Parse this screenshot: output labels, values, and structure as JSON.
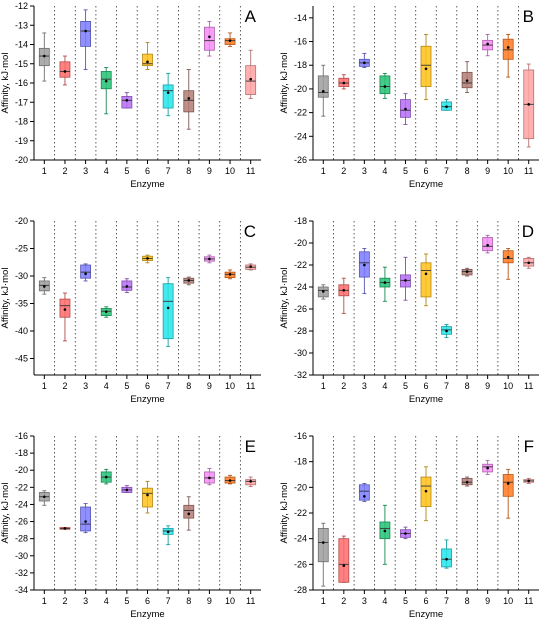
{
  "chart_data": [
    {
      "type": "box",
      "panel_label": "A",
      "xlabel": "Enzyme",
      "ylabel": "Affinity, kJ·mol",
      "categories": [
        "1",
        "2",
        "3",
        "4",
        "5",
        "6",
        "7",
        "8",
        "9",
        "10",
        "11"
      ],
      "ylim": [
        -20,
        -12
      ],
      "yticks": [
        -20,
        -19,
        -18,
        -17,
        -16,
        -15,
        -14,
        -13,
        -12
      ],
      "boxes": [
        {
          "min": -15.9,
          "q1": -15.1,
          "median": -14.6,
          "q3": -14.2,
          "max": -13.4,
          "mean": -14.6,
          "color": "#9e9e9e"
        },
        {
          "min": -16.1,
          "q1": -15.7,
          "median": -15.4,
          "q3": -14.9,
          "max": -14.6,
          "mean": -15.4,
          "color": "#ff6b6b"
        },
        {
          "min": -15.3,
          "q1": -14.1,
          "median": -13.3,
          "q3": -12.8,
          "max": -12.2,
          "mean": -13.3,
          "color": "#7b7bff"
        },
        {
          "min": -17.6,
          "q1": -16.3,
          "median": -15.8,
          "q3": -15.4,
          "max": -15.2,
          "mean": -15.9,
          "color": "#23c275"
        },
        {
          "min": -17.3,
          "q1": -17.3,
          "median": -16.9,
          "q3": -16.7,
          "max": -16.5,
          "mean": -16.9,
          "color": "#b56cf5"
        },
        {
          "min": -15.3,
          "q1": -15.1,
          "median": -15.0,
          "q3": -14.5,
          "max": -13.9,
          "mean": -14.9,
          "color": "#ffc21a"
        },
        {
          "min": -17.7,
          "q1": -17.3,
          "median": -16.4,
          "q3": -16.1,
          "max": -15.5,
          "mean": -16.5,
          "color": "#24e5ea"
        },
        {
          "min": -18.4,
          "q1": -17.5,
          "median": -16.9,
          "q3": -16.4,
          "max": -15.3,
          "mean": -16.8,
          "color": "#b47b74"
        },
        {
          "min": -14.6,
          "q1": -14.3,
          "median": -13.8,
          "q3": -13.1,
          "max": -12.8,
          "mean": -13.6,
          "color": "#f58cf5"
        },
        {
          "min": -14.1,
          "q1": -14.0,
          "median": -13.8,
          "q3": -13.7,
          "max": -13.4,
          "mean": -13.8,
          "color": "#ff7a21"
        },
        {
          "min": -16.8,
          "q1": -16.6,
          "median": -15.9,
          "q3": -15.1,
          "max": -14.3,
          "mean": -15.8,
          "color": "#ffa3a3"
        }
      ]
    },
    {
      "type": "box",
      "panel_label": "B",
      "xlabel": "Enzyme",
      "ylabel": "Affinity, kJ·mol",
      "categories": [
        "1",
        "2",
        "3",
        "4",
        "5",
        "6",
        "7",
        "8",
        "9",
        "10",
        "11"
      ],
      "ylim": [
        -26,
        -13
      ],
      "yticks": [
        -26,
        -24,
        -22,
        -20,
        -18,
        -16,
        -14
      ],
      "boxes": [
        {
          "min": -22.3,
          "q1": -20.7,
          "median": -20.3,
          "q3": -18.9,
          "max": -18.0,
          "mean": -20.2,
          "color": "#9e9e9e"
        },
        {
          "min": -20.0,
          "q1": -19.8,
          "median": -19.5,
          "q3": -19.1,
          "max": -18.8,
          "mean": -19.5,
          "color": "#ff6b6b"
        },
        {
          "min": -18.2,
          "q1": -18.1,
          "median": -17.8,
          "q3": -17.5,
          "max": -17.0,
          "mean": -17.8,
          "color": "#7b7bff"
        },
        {
          "min": -20.8,
          "q1": -20.4,
          "median": -19.8,
          "q3": -18.9,
          "max": -18.7,
          "mean": -19.8,
          "color": "#23c275"
        },
        {
          "min": -23.0,
          "q1": -22.4,
          "median": -21.8,
          "q3": -20.9,
          "max": -20.4,
          "mean": -21.7,
          "color": "#b56cf5"
        },
        {
          "min": -20.9,
          "q1": -19.8,
          "median": -18.0,
          "q3": -16.4,
          "max": -15.4,
          "mean": -18.3,
          "color": "#ffc21a"
        },
        {
          "min": -21.8,
          "q1": -21.8,
          "median": -21.5,
          "q3": -21.1,
          "max": -20.9,
          "mean": -21.5,
          "color": "#24e5ea"
        },
        {
          "min": -20.3,
          "q1": -19.9,
          "median": -19.5,
          "q3": -18.6,
          "max": -17.7,
          "mean": -19.3,
          "color": "#b47b74"
        },
        {
          "min": -17.2,
          "q1": -16.7,
          "median": -16.3,
          "q3": -15.9,
          "max": -15.4,
          "mean": -16.2,
          "color": "#f58cf5"
        },
        {
          "min": -19.0,
          "q1": -17.5,
          "median": -16.7,
          "q3": -15.8,
          "max": -15.4,
          "mean": -16.5,
          "color": "#ff7a21"
        },
        {
          "min": -24.9,
          "q1": -24.2,
          "median": -21.3,
          "q3": -18.4,
          "max": -17.9,
          "mean": -21.3,
          "color": "#ffa3a3"
        }
      ]
    },
    {
      "type": "box",
      "panel_label": "C",
      "xlabel": "Enzyme",
      "ylabel": "Affinity, kJ·mol",
      "categories": [
        "1",
        "2",
        "3",
        "4",
        "5",
        "6",
        "7",
        "8",
        "9",
        "10",
        "11"
      ],
      "ylim": [
        -48,
        -20
      ],
      "yticks": [
        -45,
        -40,
        -35,
        -30,
        -25,
        -20
      ],
      "boxes": [
        {
          "min": -33.3,
          "q1": -32.7,
          "median": -31.7,
          "q3": -30.9,
          "max": -30.3,
          "mean": -31.9,
          "color": "#9e9e9e"
        },
        {
          "min": -41.8,
          "q1": -37.5,
          "median": -35.4,
          "q3": -34.2,
          "max": -33.1,
          "mean": -36.1,
          "color": "#ff6b6b"
        },
        {
          "min": -30.9,
          "q1": -30.4,
          "median": -29.3,
          "q3": -28.0,
          "max": -27.8,
          "mean": -29.6,
          "color": "#7b7bff"
        },
        {
          "min": -37.5,
          "q1": -37.2,
          "median": -36.4,
          "q3": -35.9,
          "max": -35.6,
          "mean": -36.5,
          "color": "#23c275"
        },
        {
          "min": -33.0,
          "q1": -32.6,
          "median": -32.0,
          "q3": -30.9,
          "max": -30.5,
          "mean": -31.9,
          "color": "#b56cf5"
        },
        {
          "min": -27.6,
          "q1": -27.2,
          "median": -26.8,
          "q3": -26.4,
          "max": -26.2,
          "mean": -26.8,
          "color": "#ffc21a"
        },
        {
          "min": -42.8,
          "q1": -41.4,
          "median": -34.6,
          "q3": -31.4,
          "max": -30.3,
          "mean": -35.8,
          "color": "#24e5ea"
        },
        {
          "min": -31.6,
          "q1": -31.3,
          "median": -30.8,
          "q3": -30.4,
          "max": -30.2,
          "mean": -30.8,
          "color": "#b47b74"
        },
        {
          "min": -27.6,
          "q1": -27.3,
          "median": -26.9,
          "q3": -26.5,
          "max": -26.2,
          "mean": -26.9,
          "color": "#f58cf5"
        },
        {
          "min": -30.5,
          "q1": -30.3,
          "median": -29.7,
          "q3": -29.3,
          "max": -28.9,
          "mean": -29.7,
          "color": "#ff7a21"
        },
        {
          "min": -28.9,
          "q1": -28.8,
          "median": -28.4,
          "q3": -28.0,
          "max": -27.8,
          "mean": -28.3,
          "color": "#ffa3a3"
        }
      ]
    },
    {
      "type": "box",
      "panel_label": "D",
      "xlabel": "Enzyme",
      "ylabel": "Affinity, kJ·mol",
      "categories": [
        "1",
        "2",
        "3",
        "4",
        "5",
        "6",
        "7",
        "8",
        "9",
        "10",
        "11"
      ],
      "ylim": [
        -32,
        -18
      ],
      "yticks": [
        -32,
        -30,
        -28,
        -26,
        -24,
        -22,
        -20,
        -18
      ],
      "boxes": [
        {
          "min": -25.1,
          "q1": -24.9,
          "median": -24.3,
          "q3": -24.0,
          "max": -23.8,
          "mean": -24.4,
          "color": "#9e9e9e"
        },
        {
          "min": -26.4,
          "q1": -24.8,
          "median": -24.3,
          "q3": -23.8,
          "max": -23.2,
          "mean": -24.3,
          "color": "#ff6b6b"
        },
        {
          "min": -24.6,
          "q1": -23.1,
          "median": -21.8,
          "q3": -20.8,
          "max": -20.5,
          "mean": -22.0,
          "color": "#7b7bff"
        },
        {
          "min": -25.3,
          "q1": -24.0,
          "median": -23.6,
          "q3": -23.2,
          "max": -22.2,
          "mean": -23.6,
          "color": "#23c275"
        },
        {
          "min": -25.2,
          "q1": -24.0,
          "median": -23.4,
          "q3": -22.9,
          "max": -21.3,
          "mean": -23.4,
          "color": "#b56cf5"
        },
        {
          "min": -25.7,
          "q1": -24.9,
          "median": -22.5,
          "q3": -21.8,
          "max": -21.0,
          "mean": -22.8,
          "color": "#ffc21a"
        },
        {
          "min": -28.6,
          "q1": -28.3,
          "median": -27.9,
          "q3": -27.6,
          "max": -27.4,
          "mean": -28.0,
          "color": "#24e5ea"
        },
        {
          "min": -23.0,
          "q1": -22.9,
          "median": -22.6,
          "q3": -22.4,
          "max": -22.3,
          "mean": -22.6,
          "color": "#b47b74"
        },
        {
          "min": -20.9,
          "q1": -20.7,
          "median": -20.3,
          "q3": -19.5,
          "max": -19.3,
          "mean": -20.2,
          "color": "#f58cf5"
        },
        {
          "min": -23.3,
          "q1": -21.8,
          "median": -21.4,
          "q3": -20.7,
          "max": -20.5,
          "mean": -21.3,
          "color": "#ff7a21"
        },
        {
          "min": -22.3,
          "q1": -22.1,
          "median": -21.8,
          "q3": -21.4,
          "max": -21.3,
          "mean": -21.8,
          "color": "#ffa3a3"
        }
      ]
    },
    {
      "type": "box",
      "panel_label": "E",
      "xlabel": "Enzyme",
      "ylabel": "Affinity, kJ·mol",
      "categories": [
        "1",
        "2",
        "3",
        "4",
        "5",
        "6",
        "7",
        "8",
        "9",
        "10",
        "11"
      ],
      "ylim": [
        -34,
        -16
      ],
      "yticks": [
        -34,
        -32,
        -30,
        -28,
        -26,
        -24,
        -22,
        -20,
        -18,
        -16
      ],
      "boxes": [
        {
          "min": -24.1,
          "q1": -23.6,
          "median": -23.1,
          "q3": -22.6,
          "max": -22.4,
          "mean": -23.1,
          "color": "#9e9e9e"
        },
        {
          "min": -26.9,
          "q1": -26.9,
          "median": -26.8,
          "q3": -26.7,
          "max": -26.7,
          "mean": -26.8,
          "color": "#ff6b6b"
        },
        {
          "min": -27.3,
          "q1": -27.1,
          "median": -26.3,
          "q3": -24.3,
          "max": -23.9,
          "mean": -26.0,
          "color": "#7b7bff"
        },
        {
          "min": -21.6,
          "q1": -21.4,
          "median": -20.8,
          "q3": -20.2,
          "max": -19.9,
          "mean": -20.8,
          "color": "#23c275"
        },
        {
          "min": -22.6,
          "q1": -22.6,
          "median": -22.3,
          "q3": -22.0,
          "max": -21.8,
          "mean": -22.3,
          "color": "#b56cf5"
        },
        {
          "min": -25.0,
          "q1": -24.3,
          "median": -22.7,
          "q3": -22.1,
          "max": -21.3,
          "mean": -22.9,
          "color": "#ffc21a"
        },
        {
          "min": -28.7,
          "q1": -27.5,
          "median": -27.1,
          "q3": -26.8,
          "max": -26.5,
          "mean": -27.2,
          "color": "#24e5ea"
        },
        {
          "min": -27.0,
          "q1": -25.6,
          "median": -24.7,
          "q3": -24.1,
          "max": -23.1,
          "mean": -25.1,
          "color": "#b47b74"
        },
        {
          "min": -21.7,
          "q1": -21.5,
          "median": -20.9,
          "q3": -20.2,
          "max": -19.8,
          "mean": -20.9,
          "color": "#f58cf5"
        },
        {
          "min": -21.6,
          "q1": -21.5,
          "median": -21.2,
          "q3": -20.8,
          "max": -20.6,
          "mean": -21.2,
          "color": "#ff7a21"
        },
        {
          "min": -21.9,
          "q1": -21.7,
          "median": -21.3,
          "q3": -21.1,
          "max": -20.8,
          "mean": -21.3,
          "color": "#ffa3a3"
        }
      ]
    },
    {
      "type": "box",
      "panel_label": "F",
      "xlabel": "Enzyme",
      "ylabel": "Affinity, kJ·mol",
      "categories": [
        "1",
        "2",
        "3",
        "4",
        "5",
        "6",
        "7",
        "8",
        "9",
        "10",
        "11"
      ],
      "ylim": [
        -28,
        -16
      ],
      "yticks": [
        -28,
        -26,
        -24,
        -22,
        -20,
        -18,
        -16
      ],
      "boxes": [
        {
          "min": -27.7,
          "q1": -25.8,
          "median": -24.3,
          "q3": -23.2,
          "max": -22.8,
          "mean": -24.3,
          "color": "#9e9e9e"
        },
        {
          "min": -27.4,
          "q1": -27.4,
          "median": -26.0,
          "q3": -24.0,
          "max": -23.8,
          "mean": -26.1,
          "color": "#ff6b6b"
        },
        {
          "min": -21.1,
          "q1": -21.0,
          "median": -20.3,
          "q3": -19.8,
          "max": -19.7,
          "mean": -20.7,
          "color": "#7b7bff"
        },
        {
          "min": -26.0,
          "q1": -24.0,
          "median": -23.2,
          "q3": -22.7,
          "max": -21.4,
          "mean": -23.4,
          "color": "#23c275"
        },
        {
          "min": -24.0,
          "q1": -23.9,
          "median": -23.6,
          "q3": -23.3,
          "max": -23.1,
          "mean": -23.6,
          "color": "#b56cf5"
        },
        {
          "min": -22.6,
          "q1": -21.5,
          "median": -19.9,
          "q3": -19.2,
          "max": -18.4,
          "mean": -20.3,
          "color": "#ffc21a"
        },
        {
          "min": -26.3,
          "q1": -26.2,
          "median": -25.6,
          "q3": -24.8,
          "max": -24.1,
          "mean": -25.6,
          "color": "#24e5ea"
        },
        {
          "min": -19.9,
          "q1": -19.8,
          "median": -19.6,
          "q3": -19.3,
          "max": -19.2,
          "mean": -19.6,
          "color": "#b47b74"
        },
        {
          "min": -19.0,
          "q1": -18.8,
          "median": -18.4,
          "q3": -18.2,
          "max": -17.9,
          "mean": -18.5,
          "color": "#f58cf5"
        },
        {
          "min": -22.4,
          "q1": -20.7,
          "median": -19.6,
          "q3": -19.0,
          "max": -18.6,
          "mean": -19.7,
          "color": "#ff7a21"
        },
        {
          "min": -19.7,
          "q1": -19.6,
          "median": -19.5,
          "q3": -19.4,
          "max": -19.3,
          "mean": -19.5,
          "color": "#ffa3a3"
        }
      ]
    }
  ]
}
